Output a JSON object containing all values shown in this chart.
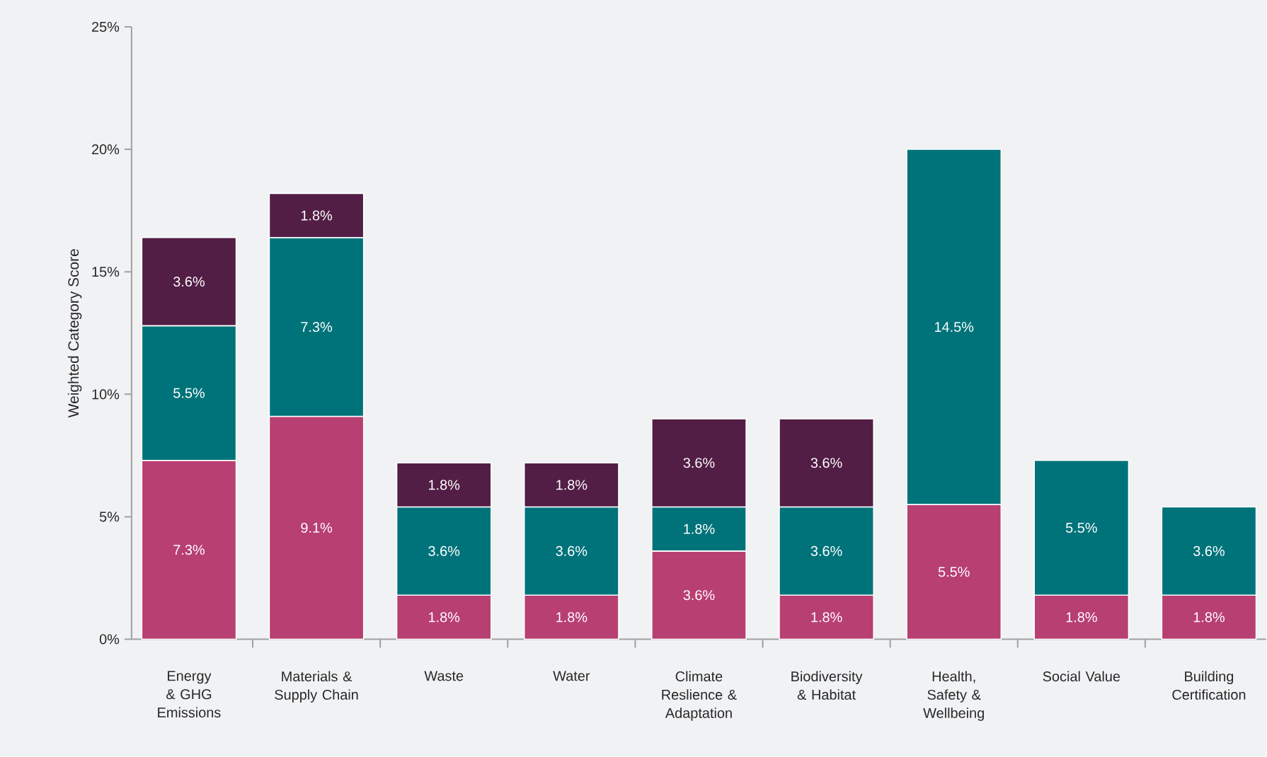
{
  "chart_data": {
    "type": "bar",
    "stacked": true,
    "ylabel": "Weighted Category Score",
    "categories": [
      "Energy & GHG Emissions",
      "Materials & Supply Chain",
      "Waste",
      "Water",
      "Climate Reslience & Adaptation",
      "Biodiversity & Habitat",
      "Health, Safety & Wellbeing",
      "Social Value",
      "Building Certification"
    ],
    "series": [
      {
        "color": "#b83f72",
        "values": [
          7.3,
          9.1,
          1.8,
          1.8,
          3.6,
          1.8,
          5.5,
          1.8,
          1.8
        ],
        "value_labels": [
          "7.3%",
          "9.1%",
          "1.8%",
          "1.8%",
          "3.6%",
          "1.8%",
          "5.5%",
          "1.8%",
          "1.8%"
        ]
      },
      {
        "color": "#00737a",
        "values": [
          5.5,
          7.3,
          3.6,
          3.6,
          1.8,
          3.6,
          14.5,
          5.5,
          3.6
        ],
        "value_labels": [
          "5.5%",
          "7.3%",
          "3.6%",
          "3.6%",
          "1.8%",
          "3.6%",
          "14.5%",
          "5.5%",
          "3.6%"
        ]
      },
      {
        "color": "#521e45",
        "values": [
          3.6,
          1.8,
          1.8,
          1.8,
          3.6,
          3.6,
          null,
          null,
          null
        ],
        "value_labels": [
          "3.6%",
          "1.8%",
          "1.8%",
          "1.8%",
          "3.6%",
          "3.6%",
          null,
          null,
          null
        ]
      }
    ],
    "ylim": [
      0,
      25
    ],
    "yticks": [
      {
        "value": 0,
        "label": "0%"
      },
      {
        "value": 5,
        "label": "5%"
      },
      {
        "value": 10,
        "label": "10%"
      },
      {
        "value": 15,
        "label": "15%"
      },
      {
        "value": 20,
        "label": "20%"
      },
      {
        "value": 25,
        "label": "25%"
      }
    ]
  }
}
